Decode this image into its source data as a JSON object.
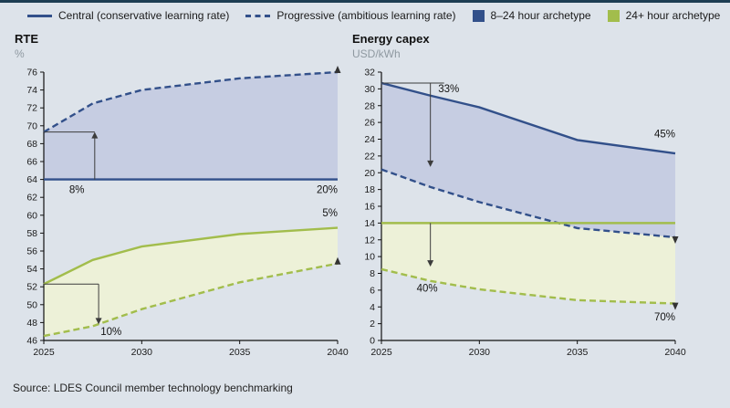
{
  "page": {
    "background": "#dde3ea",
    "top_border_color": "#1d3d52",
    "source": "Source: LDES Council member technology benchmarking"
  },
  "legend": {
    "items": [
      {
        "label": "Central (conservative learning rate)",
        "swatch": "line-solid",
        "color": "#32508a"
      },
      {
        "label": "Progressive (ambitious learning rate)",
        "swatch": "line-dashed",
        "color": "#32508a"
      },
      {
        "label": "8–24 hour archetype",
        "swatch": "square",
        "color": "#32508a"
      },
      {
        "label": "24+ hour archetype",
        "swatch": "square",
        "color": "#a2bd4c"
      }
    ]
  },
  "chart_data": [
    {
      "type": "line",
      "title": "RTE",
      "xlabel": "",
      "ylabel": "%",
      "xlim": [
        2025,
        2040
      ],
      "ylim": [
        46,
        76
      ],
      "ytick_step": 2,
      "xticks": [
        2025,
        2030,
        2035,
        2040
      ],
      "x": [
        2025,
        2027.5,
        2030,
        2035,
        2040
      ],
      "series": [
        {
          "name": "8–24 hour central",
          "color": "#32508a",
          "dashed": false,
          "values": [
            64,
            64,
            64,
            64,
            64
          ]
        },
        {
          "name": "8–24 hour progressive",
          "color": "#32508a",
          "dashed": true,
          "values": [
            69.3,
            72.5,
            74,
            75.3,
            76
          ],
          "end_arrow": "up"
        },
        {
          "name": "24+ hour central",
          "color": "#a2bd4c",
          "dashed": false,
          "values": [
            52.3,
            55,
            56.5,
            57.9,
            58.6
          ]
        },
        {
          "name": "24+ hour progressive",
          "color": "#a2bd4c",
          "dashed": true,
          "values": [
            46.5,
            47.6,
            49.5,
            52.5,
            54.6
          ],
          "end_arrow": "up"
        }
      ],
      "fills": [
        {
          "upper": 1,
          "lower": 0,
          "color": "#c6cde2"
        },
        {
          "upper": 2,
          "lower": 3,
          "color": "#edf1d8"
        }
      ],
      "annotations": {
        "reflines": [
          {
            "y": 69.3,
            "x1": 2025,
            "x2": 2027.6
          },
          {
            "y": 52.3,
            "x1": 2025,
            "x2": 2027.8
          }
        ],
        "arrows": [
          {
            "x": 2027.6,
            "y1": 64,
            "y2": 69.3
          },
          {
            "x": 2027.8,
            "y1": 52.3,
            "y2": 47.8
          }
        ],
        "labels": [
          {
            "text": "8%",
            "x": 2026.3,
            "y": 62.5,
            "anchor": "start"
          },
          {
            "text": "10%",
            "x": 2027.9,
            "y": 46.6,
            "anchor": "start"
          },
          {
            "text": "20%",
            "x": 2040,
            "y": 62.5,
            "anchor": "end"
          },
          {
            "text": "5%",
            "x": 2040,
            "y": 59.9,
            "anchor": "end"
          }
        ]
      }
    },
    {
      "type": "line",
      "title": "Energy capex",
      "xlabel": "",
      "ylabel": "USD/kWh",
      "xlim": [
        2025,
        2040
      ],
      "ylim": [
        0,
        32
      ],
      "ytick_step": 2,
      "xticks": [
        2025,
        2030,
        2035,
        2040
      ],
      "x": [
        2025,
        2027.5,
        2030,
        2035,
        2040
      ],
      "series": [
        {
          "name": "8–24 hour central",
          "color": "#32508a",
          "dashed": false,
          "values": [
            30.7,
            29.2,
            27.8,
            23.9,
            22.3
          ]
        },
        {
          "name": "8–24 hour progressive",
          "color": "#32508a",
          "dashed": true,
          "values": [
            20.4,
            18.3,
            16.5,
            13.4,
            12.3
          ],
          "end_arrow": "down"
        },
        {
          "name": "24+ hour central",
          "color": "#a2bd4c",
          "dashed": false,
          "values": [
            14,
            14,
            14,
            14,
            14
          ]
        },
        {
          "name": "24+ hour progressive",
          "color": "#a2bd4c",
          "dashed": true,
          "values": [
            8.5,
            7.1,
            6.1,
            4.8,
            4.4
          ],
          "end_arrow": "down"
        }
      ],
      "fills": [
        {
          "upper": 2,
          "lower": 3,
          "color": "#edf1d8"
        },
        {
          "upper": 0,
          "lower": 1,
          "color": "#c6cde2"
        }
      ],
      "annotations": {
        "reflines": [
          {
            "y": 30.7,
            "x1": 2025,
            "x2": 2028.2
          }
        ],
        "arrows": [
          {
            "x": 2027.5,
            "y1": 30.7,
            "y2": 20.7
          },
          {
            "x": 2027.5,
            "y1": 14,
            "y2": 8.8
          }
        ],
        "labels": [
          {
            "text": "33%",
            "x": 2027.9,
            "y": 29.6,
            "anchor": "start"
          },
          {
            "text": "40%",
            "x": 2026.8,
            "y": 5.8,
            "anchor": "start"
          },
          {
            "text": "45%",
            "x": 2040,
            "y": 24.2,
            "anchor": "end"
          },
          {
            "text": "70%",
            "x": 2040,
            "y": 2.4,
            "anchor": "end"
          }
        ]
      }
    }
  ]
}
